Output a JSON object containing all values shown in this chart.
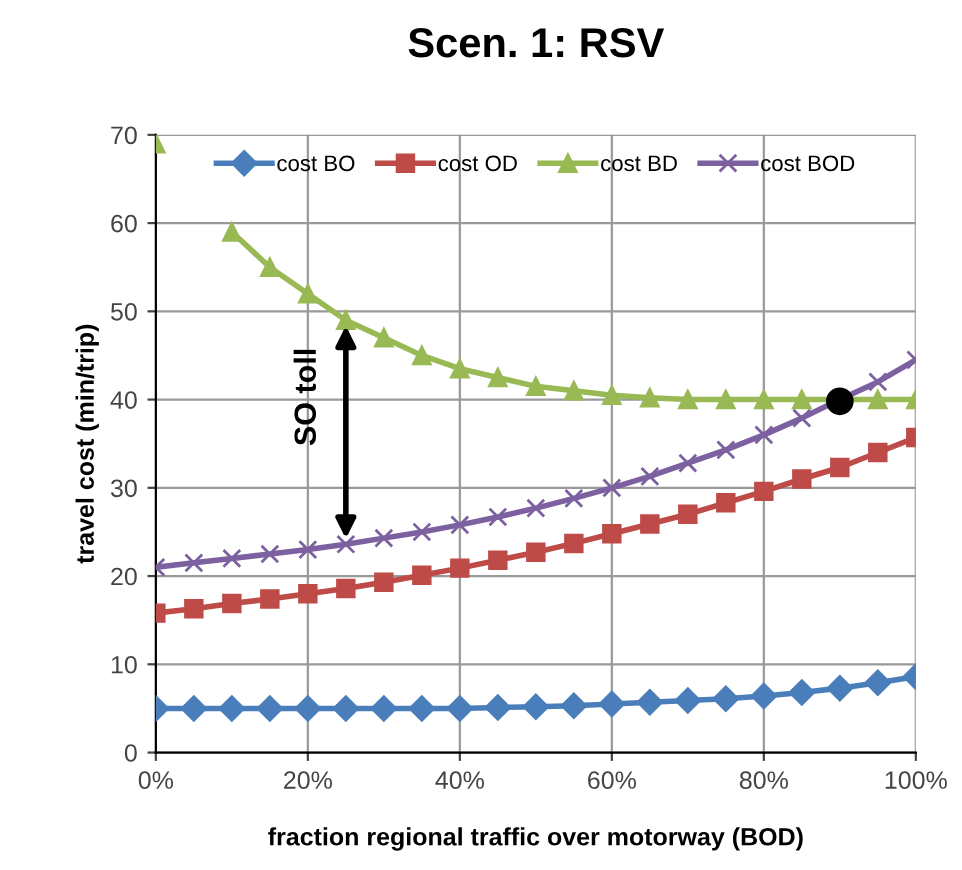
{
  "chart_data": {
    "type": "line",
    "title": "Scen. 1: RSV",
    "xlabel": "fraction regional traffic over motorway (BOD)",
    "ylabel": "travel cost (min/trip)",
    "x": [
      0,
      0.05,
      0.1,
      0.15,
      0.2,
      0.25,
      0.3,
      0.35,
      0.4,
      0.45,
      0.5,
      0.55,
      0.6,
      0.65,
      0.7,
      0.75,
      0.8,
      0.85,
      0.9,
      0.95,
      1
    ],
    "series": [
      {
        "name": "cost BO",
        "color": "#4a7ebb",
        "marker": "diamond",
        "values": [
          5,
          5,
          5,
          5,
          5,
          5,
          5,
          5,
          5,
          5.1,
          5.2,
          5.3,
          5.5,
          5.7,
          5.9,
          6.1,
          6.4,
          6.8,
          7.3,
          7.9,
          8.6
        ]
      },
      {
        "name": "cost OD",
        "color": "#be4b48",
        "marker": "square",
        "values": [
          15.8,
          16.3,
          16.9,
          17.4,
          18,
          18.6,
          19.3,
          20.1,
          20.9,
          21.8,
          22.7,
          23.7,
          24.8,
          25.9,
          27,
          28.3,
          29.6,
          31,
          32.3,
          34,
          35.7
        ]
      },
      {
        "name": "cost BD",
        "color": "#98b954",
        "marker": "triangle",
        "values": [
          69,
          null,
          59,
          55,
          52,
          49,
          47,
          45,
          43.5,
          42.5,
          41.5,
          41,
          40.5,
          40.2,
          40,
          40,
          40,
          40,
          40,
          40,
          40
        ]
      },
      {
        "name": "cost BOD",
        "color": "#7d60a0",
        "marker": "cross",
        "values": [
          21,
          21.5,
          22,
          22.5,
          23,
          23.6,
          24.3,
          25,
          25.8,
          26.7,
          27.7,
          28.8,
          30,
          31.3,
          32.8,
          34.3,
          36,
          37.9,
          40,
          42,
          44.5
        ]
      },
      {
        "type": "scatter",
        "color": "#000000",
        "marker": "circle",
        "x": [
          0.9
        ],
        "values": [
          39.8
        ]
      }
    ],
    "annotations": [
      {
        "text": "SO toll",
        "x": 0.25,
        "y": 49
      }
    ],
    "xlim": [
      0,
      1
    ],
    "xticks": [
      {
        "value": 0,
        "label": "0%"
      },
      {
        "value": 0.2,
        "label": "20%"
      },
      {
        "value": 0.4,
        "label": "40%"
      },
      {
        "value": 0.6,
        "label": "60%"
      },
      {
        "value": 0.8,
        "label": "80%"
      },
      {
        "value": 1,
        "label": "100%"
      }
    ],
    "ylim": [
      0,
      70
    ],
    "yticks": [
      0,
      10,
      20,
      30,
      40,
      50,
      60,
      70
    ],
    "grid": true,
    "legend": "top"
  }
}
